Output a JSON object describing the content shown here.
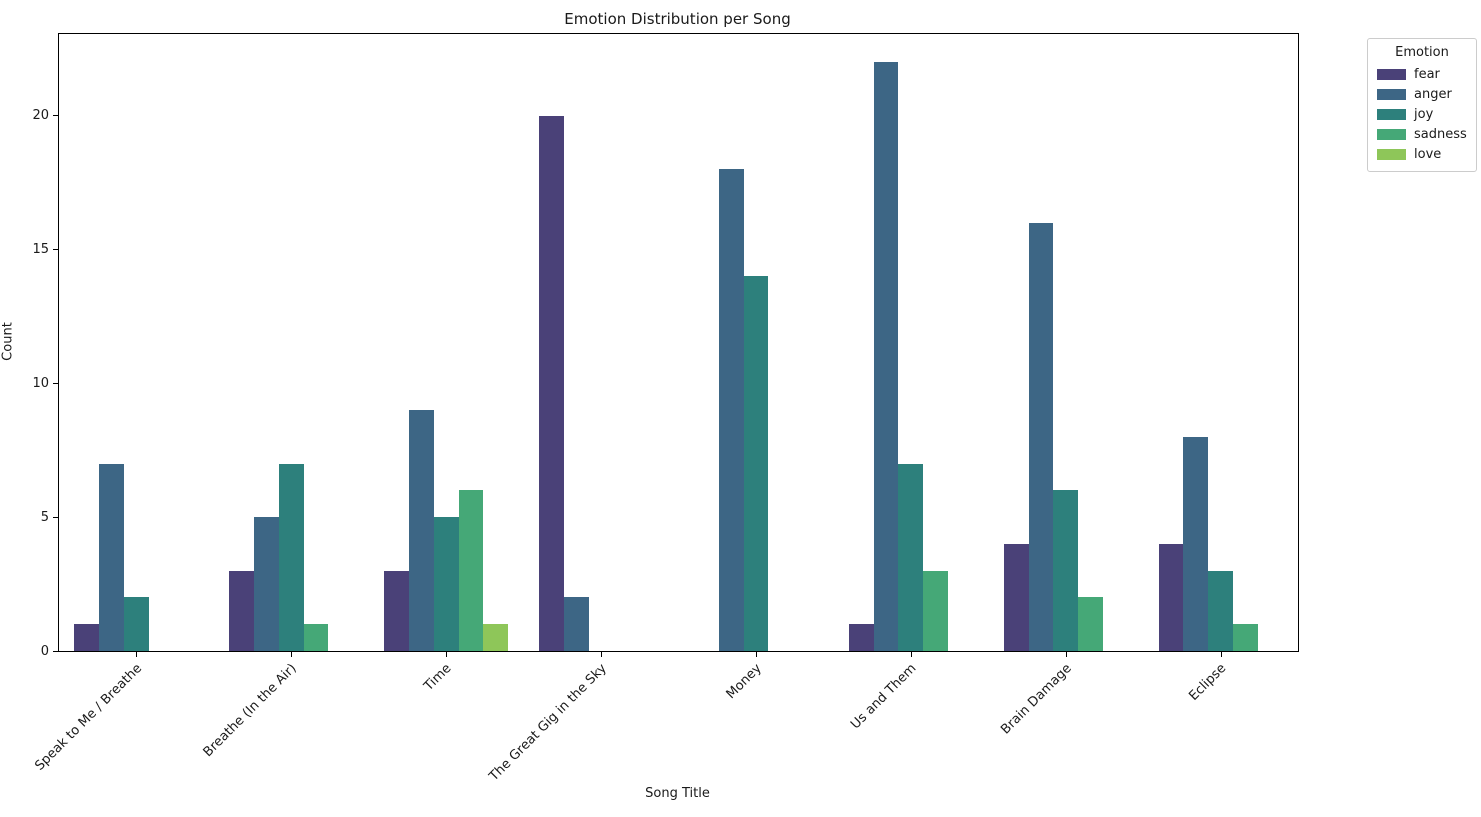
{
  "title": "Emotion Distribution per Song",
  "chart_data": {
    "type": "bar",
    "title": "Emotion Distribution per Song",
    "xlabel": "Song Title",
    "ylabel": "Count",
    "ylim": [
      0,
      23.05
    ],
    "yticks": [
      0,
      5,
      10,
      15,
      20
    ],
    "grid": false,
    "legend": {
      "title": "Emotion",
      "position": "upper right, outside plot"
    },
    "categories": [
      "Speak to Me / Breathe",
      "Breathe (In the Air)",
      "Time",
      "The Great Gig in the Sky",
      "Money",
      "Us and Them",
      "Brain Damage",
      "Eclipse"
    ],
    "series": [
      {
        "name": "fear",
        "color": "#4a4178",
        "values": [
          1,
          3,
          3,
          20,
          0,
          1,
          4,
          4
        ]
      },
      {
        "name": "anger",
        "color": "#3d6685",
        "values": [
          7,
          5,
          9,
          2,
          18,
          22,
          16,
          8
        ]
      },
      {
        "name": "joy",
        "color": "#2d807c",
        "values": [
          2,
          7,
          5,
          0,
          14,
          7,
          6,
          3
        ]
      },
      {
        "name": "sadness",
        "color": "#45a877",
        "values": [
          0,
          1,
          6,
          0,
          0,
          3,
          2,
          1
        ]
      },
      {
        "name": "love",
        "color": "#8ec659",
        "values": [
          0,
          0,
          1,
          0,
          0,
          0,
          0,
          0
        ]
      }
    ]
  }
}
